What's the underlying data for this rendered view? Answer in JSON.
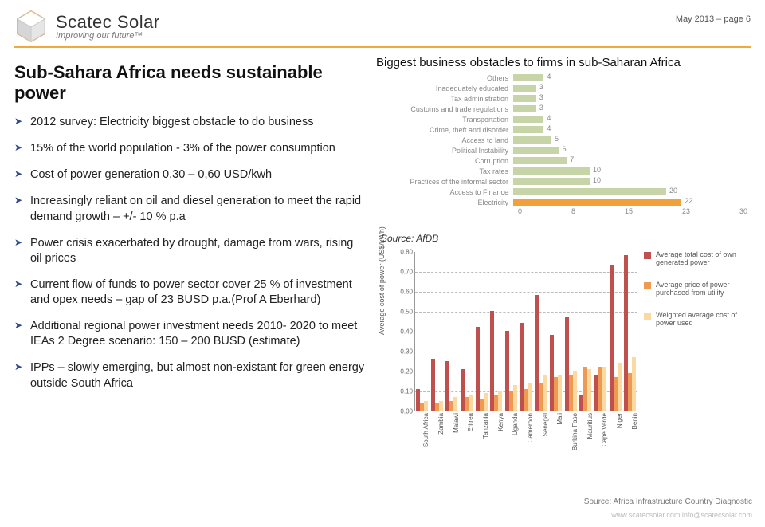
{
  "header": {
    "brand_name": "Scatec Solar",
    "brand_tagline": "Improving our future™",
    "page_meta": "May 2013 – page 6"
  },
  "title": "Sub-Sahara Africa needs sustainable power",
  "bullets": [
    "2012 survey: Electricity biggest obstacle to do business",
    "15% of the world population -  3% of the power consumption",
    "Cost of power generation 0,30 – 0,60 USD/kwh",
    "Increasingly reliant on oil and diesel generation to meet the rapid demand  growth – +/- 10 % p.a",
    "Power crisis exacerbated by drought, damage from wars, rising oil prices",
    "Current flow of funds to power sector cover 25 % of investment and opex needs – gap of  23 BUSD p.a.(Prof A Eberhard)",
    "Additional regional power investment needs 2010- 2020 to meet IEAs 2 Degree scenario: 150 – 200 BUSD (estimate)",
    "IPPs – slowly emerging, but almost non-existant for green energy outside South Africa"
  ],
  "obstacles": {
    "title": "Biggest business obstacles to firms in sub-Saharan Africa",
    "source": "Source: AfDB",
    "xmax": 30,
    "xticks": [
      0,
      8,
      15,
      23,
      30
    ],
    "bar_colors": {
      "default": "#c6d4a8",
      "highlight": "#f2a13a"
    },
    "rows": [
      {
        "label": "Others",
        "value": 4,
        "hl": false
      },
      {
        "label": "Inadequately educated",
        "value": 3,
        "hl": false
      },
      {
        "label": "Tax administration",
        "value": 3,
        "hl": false
      },
      {
        "label": "Customs and trade regulations",
        "value": 3,
        "hl": false
      },
      {
        "label": "Transportation",
        "value": 4,
        "hl": false
      },
      {
        "label": "Crime, theft and disorder",
        "value": 4,
        "hl": false
      },
      {
        "label": "Access to land",
        "value": 5,
        "hl": false
      },
      {
        "label": "Political Instability",
        "value": 6,
        "hl": false
      },
      {
        "label": "Corruption",
        "value": 7,
        "hl": false
      },
      {
        "label": "Tax rates",
        "value": 10,
        "hl": false
      },
      {
        "label": "Practices of the informal sector",
        "value": 10,
        "hl": false
      },
      {
        "label": "Access to Finance",
        "value": 20,
        "hl": false
      },
      {
        "label": "Electricity",
        "value": 22,
        "hl": true
      }
    ]
  },
  "cost_chart": {
    "ylabel": "Average cost of power (US$/kWh)",
    "ymax": 0.8,
    "yticks": [
      "0.00",
      "0.10",
      "0.20",
      "0.30",
      "0.40",
      "0.50",
      "0.60",
      "0.70",
      "0.80"
    ],
    "colors": {
      "own": "#c0504d",
      "utility": "#ed9a53",
      "weighted": "#fcd9a0"
    },
    "legend": [
      {
        "key": "own",
        "text": "Average total cost of own generated power"
      },
      {
        "key": "utility",
        "text": "Average price of power purchased from utility"
      },
      {
        "key": "weighted",
        "text": "Weighted average cost of power used"
      }
    ],
    "countries": [
      {
        "name": "South Africa",
        "own": 0.11,
        "utility": 0.04,
        "weighted": 0.05
      },
      {
        "name": "Zambia",
        "own": 0.26,
        "utility": 0.04,
        "weighted": 0.05
      },
      {
        "name": "Malawi",
        "own": 0.25,
        "utility": 0.05,
        "weighted": 0.07
      },
      {
        "name": "Eritrea",
        "own": 0.21,
        "utility": 0.07,
        "weighted": 0.08
      },
      {
        "name": "Tanzania",
        "own": 0.42,
        "utility": 0.06,
        "weighted": 0.09
      },
      {
        "name": "Kenya",
        "own": 0.5,
        "utility": 0.08,
        "weighted": 0.1
      },
      {
        "name": "Uganda",
        "own": 0.4,
        "utility": 0.1,
        "weighted": 0.13
      },
      {
        "name": "Cameroon",
        "own": 0.44,
        "utility": 0.11,
        "weighted": 0.14
      },
      {
        "name": "Senegal",
        "own": 0.58,
        "utility": 0.14,
        "weighted": 0.18
      },
      {
        "name": "Mali",
        "own": 0.38,
        "utility": 0.17,
        "weighted": 0.18
      },
      {
        "name": "Burkina Faso",
        "own": 0.47,
        "utility": 0.18,
        "weighted": 0.2
      },
      {
        "name": "Mauritius",
        "own": 0.08,
        "utility": 0.22,
        "weighted": 0.21
      },
      {
        "name": "Cape Verde",
        "own": 0.18,
        "utility": 0.22,
        "weighted": 0.22
      },
      {
        "name": "Niger",
        "own": 0.73,
        "utility": 0.17,
        "weighted": 0.24
      },
      {
        "name": "Benin",
        "own": 0.78,
        "utility": 0.19,
        "weighted": 0.27
      }
    ],
    "source": "Source: Africa Infrastructure Country Diagnostic"
  },
  "footer": "www.scatecsolar.com    info@scatecsolar.com"
}
